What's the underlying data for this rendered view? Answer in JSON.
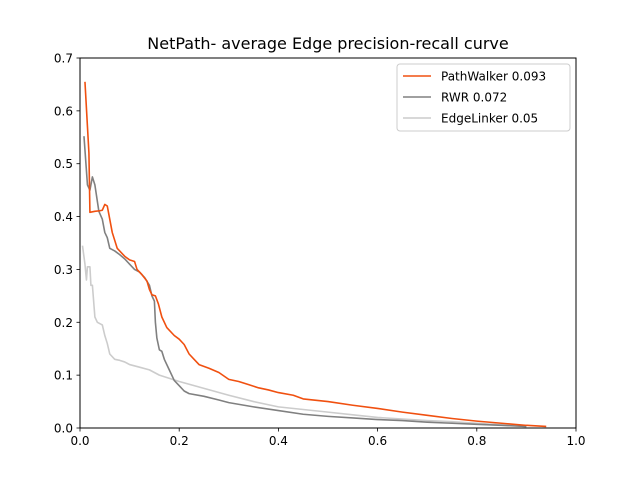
{
  "chart_data": {
    "type": "line",
    "title": "NetPath- average Edge precision-recall curve",
    "xlabel": "",
    "ylabel": "",
    "xlim": [
      0.0,
      1.0
    ],
    "ylim": [
      0.0,
      0.7
    ],
    "xticks": [
      "0.0",
      "0.2",
      "0.4",
      "0.6",
      "0.8",
      "1.0"
    ],
    "yticks": [
      "0.0",
      "0.1",
      "0.2",
      "0.3",
      "0.4",
      "0.5",
      "0.6",
      "0.7"
    ],
    "grid": false,
    "legend_position": "top-right",
    "series": [
      {
        "name": "PathWalker 0.093",
        "color": "#f05010",
        "points": [
          [
            0.01,
            0.655
          ],
          [
            0.018,
            0.52
          ],
          [
            0.02,
            0.408
          ],
          [
            0.03,
            0.41
          ],
          [
            0.04,
            0.411
          ],
          [
            0.045,
            0.412
          ],
          [
            0.05,
            0.423
          ],
          [
            0.055,
            0.42
          ],
          [
            0.058,
            0.405
          ],
          [
            0.065,
            0.37
          ],
          [
            0.075,
            0.34
          ],
          [
            0.09,
            0.325
          ],
          [
            0.1,
            0.318
          ],
          [
            0.11,
            0.315
          ],
          [
            0.115,
            0.3
          ],
          [
            0.125,
            0.29
          ],
          [
            0.135,
            0.278
          ],
          [
            0.14,
            0.262
          ],
          [
            0.145,
            0.252
          ],
          [
            0.152,
            0.25
          ],
          [
            0.158,
            0.235
          ],
          [
            0.165,
            0.21
          ],
          [
            0.175,
            0.19
          ],
          [
            0.19,
            0.175
          ],
          [
            0.2,
            0.168
          ],
          [
            0.21,
            0.158
          ],
          [
            0.22,
            0.14
          ],
          [
            0.23,
            0.13
          ],
          [
            0.24,
            0.12
          ],
          [
            0.26,
            0.113
          ],
          [
            0.28,
            0.105
          ],
          [
            0.3,
            0.092
          ],
          [
            0.32,
            0.088
          ],
          [
            0.34,
            0.082
          ],
          [
            0.36,
            0.076
          ],
          [
            0.38,
            0.072
          ],
          [
            0.4,
            0.067
          ],
          [
            0.43,
            0.062
          ],
          [
            0.45,
            0.055
          ],
          [
            0.5,
            0.05
          ],
          [
            0.55,
            0.043
          ],
          [
            0.6,
            0.037
          ],
          [
            0.65,
            0.03
          ],
          [
            0.7,
            0.024
          ],
          [
            0.75,
            0.018
          ],
          [
            0.8,
            0.013
          ],
          [
            0.85,
            0.009
          ],
          [
            0.9,
            0.005
          ],
          [
            0.94,
            0.003
          ]
        ]
      },
      {
        "name": "RWR 0.072",
        "color": "#808080",
        "points": [
          [
            0.008,
            0.552
          ],
          [
            0.015,
            0.46
          ],
          [
            0.02,
            0.45
          ],
          [
            0.025,
            0.475
          ],
          [
            0.03,
            0.46
          ],
          [
            0.038,
            0.41
          ],
          [
            0.045,
            0.395
          ],
          [
            0.05,
            0.37
          ],
          [
            0.055,
            0.36
          ],
          [
            0.06,
            0.34
          ],
          [
            0.07,
            0.335
          ],
          [
            0.08,
            0.328
          ],
          [
            0.09,
            0.32
          ],
          [
            0.1,
            0.31
          ],
          [
            0.11,
            0.3
          ],
          [
            0.12,
            0.295
          ],
          [
            0.13,
            0.285
          ],
          [
            0.14,
            0.27
          ],
          [
            0.145,
            0.25
          ],
          [
            0.15,
            0.24
          ],
          [
            0.152,
            0.2
          ],
          [
            0.155,
            0.17
          ],
          [
            0.16,
            0.148
          ],
          [
            0.165,
            0.145
          ],
          [
            0.17,
            0.13
          ],
          [
            0.18,
            0.11
          ],
          [
            0.19,
            0.09
          ],
          [
            0.2,
            0.08
          ],
          [
            0.21,
            0.07
          ],
          [
            0.22,
            0.065
          ],
          [
            0.25,
            0.06
          ],
          [
            0.28,
            0.053
          ],
          [
            0.3,
            0.048
          ],
          [
            0.35,
            0.04
          ],
          [
            0.4,
            0.033
          ],
          [
            0.45,
            0.026
          ],
          [
            0.5,
            0.022
          ],
          [
            0.55,
            0.019
          ],
          [
            0.6,
            0.016
          ],
          [
            0.65,
            0.014
          ],
          [
            0.7,
            0.011
          ],
          [
            0.75,
            0.009
          ],
          [
            0.8,
            0.007
          ],
          [
            0.85,
            0.005
          ],
          [
            0.9,
            0.003
          ]
        ]
      },
      {
        "name": "EdgeLinker 0.05",
        "color": "#cccccc",
        "points": [
          [
            0.005,
            0.345
          ],
          [
            0.01,
            0.31
          ],
          [
            0.013,
            0.28
          ],
          [
            0.015,
            0.305
          ],
          [
            0.02,
            0.305
          ],
          [
            0.022,
            0.27
          ],
          [
            0.025,
            0.27
          ],
          [
            0.03,
            0.21
          ],
          [
            0.035,
            0.2
          ],
          [
            0.045,
            0.195
          ],
          [
            0.05,
            0.175
          ],
          [
            0.055,
            0.16
          ],
          [
            0.06,
            0.14
          ],
          [
            0.07,
            0.13
          ],
          [
            0.08,
            0.128
          ],
          [
            0.09,
            0.125
          ],
          [
            0.1,
            0.12
          ],
          [
            0.12,
            0.115
          ],
          [
            0.14,
            0.11
          ],
          [
            0.16,
            0.1
          ],
          [
            0.2,
            0.088
          ],
          [
            0.25,
            0.075
          ],
          [
            0.3,
            0.062
          ],
          [
            0.35,
            0.05
          ],
          [
            0.4,
            0.04
          ],
          [
            0.45,
            0.035
          ],
          [
            0.5,
            0.03
          ],
          [
            0.55,
            0.025
          ],
          [
            0.6,
            0.02
          ],
          [
            0.65,
            0.017
          ],
          [
            0.7,
            0.014
          ],
          [
            0.75,
            0.012
          ],
          [
            0.8,
            0.009
          ],
          [
            0.85,
            0.006
          ],
          [
            0.9,
            0.003
          ]
        ]
      }
    ]
  }
}
